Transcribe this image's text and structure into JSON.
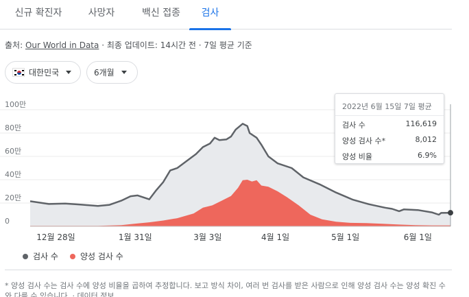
{
  "tabs": [
    {
      "label": "신규 확진자"
    },
    {
      "label": "사망자"
    },
    {
      "label": "백신 접종"
    },
    {
      "label": "검사"
    }
  ],
  "source": {
    "prefix": "출처: ",
    "link": "Our World in Data",
    "suffix": " · 최종 업데이트: 14시간 전 · 7일 평균 기준"
  },
  "filters": {
    "country": "대한민국",
    "period": "6개월"
  },
  "tooltip": {
    "title": "2022년 6월 15일 7일 평균",
    "rows": [
      {
        "label": "검사 수",
        "value": "116,619"
      },
      {
        "label": "양성 검사 수*",
        "value": "8,012"
      },
      {
        "label": "양성 비율",
        "value": "6.9%"
      }
    ]
  },
  "legend": {
    "tests": "검사 수",
    "positive": "양성 검사 수"
  },
  "note": {
    "text": "* 양성 검사 수는 검사 수에 양성 비율을 곱하여 추정합니다. 보고 방식 차이, 여러 번 검사를 받은 사람으로 인해 양성 검사 수는 양성 확진 수와 다를 수 있습니다. · ",
    "link": "데이터 정보"
  },
  "colors": {
    "accent": "#1a73e8",
    "tests_line": "#5f6368",
    "tests_fill": "#e8eaed",
    "positive_fill": "#ee675c"
  },
  "chart_data": {
    "type": "area",
    "x_ticks": [
      "12월 28일",
      "1월 31일",
      "3월 3일",
      "4월 1일",
      "5월 1일",
      "6월 1일"
    ],
    "y_ticks": [
      "0",
      "20만",
      "40만",
      "60만",
      "80만",
      "100만"
    ],
    "ylim": [
      0,
      1000000
    ],
    "xlim": [
      "2021-12-17",
      "2022-06-15"
    ],
    "grid": true,
    "series": [
      {
        "name": "검사 수",
        "points": [
          [
            "2021-12-17",
            215000
          ],
          [
            "2021-12-25",
            192000
          ],
          [
            "2022-01-01",
            196000
          ],
          [
            "2022-01-08",
            186000
          ],
          [
            "2022-01-15",
            175000
          ],
          [
            "2022-01-20",
            185000
          ],
          [
            "2022-01-25",
            220000
          ],
          [
            "2022-01-29",
            258000
          ],
          [
            "2022-02-01",
            265000
          ],
          [
            "2022-02-04",
            245000
          ],
          [
            "2022-02-06",
            232000
          ],
          [
            "2022-02-09",
            310000
          ],
          [
            "2022-02-12",
            380000
          ],
          [
            "2022-02-15",
            480000
          ],
          [
            "2022-02-18",
            500000
          ],
          [
            "2022-02-22",
            560000
          ],
          [
            "2022-02-26",
            620000
          ],
          [
            "2022-03-01",
            680000
          ],
          [
            "2022-03-04",
            710000
          ],
          [
            "2022-03-06",
            760000
          ],
          [
            "2022-03-08",
            740000
          ],
          [
            "2022-03-11",
            745000
          ],
          [
            "2022-03-13",
            770000
          ],
          [
            "2022-03-15",
            830000
          ],
          [
            "2022-03-18",
            880000
          ],
          [
            "2022-03-20",
            860000
          ],
          [
            "2022-03-21",
            800000
          ],
          [
            "2022-03-24",
            760000
          ],
          [
            "2022-03-26",
            700000
          ],
          [
            "2022-03-29",
            600000
          ],
          [
            "2022-04-02",
            540000
          ],
          [
            "2022-04-08",
            500000
          ],
          [
            "2022-04-13",
            420000
          ],
          [
            "2022-04-20",
            360000
          ],
          [
            "2022-04-27",
            290000
          ],
          [
            "2022-05-04",
            230000
          ],
          [
            "2022-05-11",
            190000
          ],
          [
            "2022-05-18",
            160000
          ],
          [
            "2022-05-21",
            150000
          ],
          [
            "2022-05-24",
            130000
          ],
          [
            "2022-05-26",
            145000
          ],
          [
            "2022-06-01",
            140000
          ],
          [
            "2022-06-07",
            120000
          ],
          [
            "2022-06-10",
            100000
          ],
          [
            "2022-06-11",
            115000
          ],
          [
            "2022-06-15",
            116619
          ]
        ]
      },
      {
        "name": "양성 검사 수",
        "points": [
          [
            "2021-12-17",
            5000
          ],
          [
            "2022-01-01",
            4000
          ],
          [
            "2022-01-15",
            5000
          ],
          [
            "2022-01-25",
            10000
          ],
          [
            "2022-02-01",
            25000
          ],
          [
            "2022-02-06",
            35000
          ],
          [
            "2022-02-12",
            50000
          ],
          [
            "2022-02-18",
            70000
          ],
          [
            "2022-02-25",
            110000
          ],
          [
            "2022-03-01",
            160000
          ],
          [
            "2022-03-05",
            180000
          ],
          [
            "2022-03-09",
            220000
          ],
          [
            "2022-03-13",
            260000
          ],
          [
            "2022-03-16",
            330000
          ],
          [
            "2022-03-18",
            395000
          ],
          [
            "2022-03-20",
            400000
          ],
          [
            "2022-03-22",
            385000
          ],
          [
            "2022-03-24",
            395000
          ],
          [
            "2022-03-26",
            350000
          ],
          [
            "2022-03-29",
            340000
          ],
          [
            "2022-04-02",
            300000
          ],
          [
            "2022-04-06",
            250000
          ],
          [
            "2022-04-11",
            180000
          ],
          [
            "2022-04-16",
            100000
          ],
          [
            "2022-04-21",
            60000
          ],
          [
            "2022-04-27",
            40000
          ],
          [
            "2022-05-03",
            30000
          ],
          [
            "2022-05-10",
            28000
          ],
          [
            "2022-05-17",
            22000
          ],
          [
            "2022-05-24",
            15000
          ],
          [
            "2022-05-31",
            10000
          ],
          [
            "2022-06-07",
            8500
          ],
          [
            "2022-06-15",
            8012
          ]
        ]
      }
    ]
  }
}
